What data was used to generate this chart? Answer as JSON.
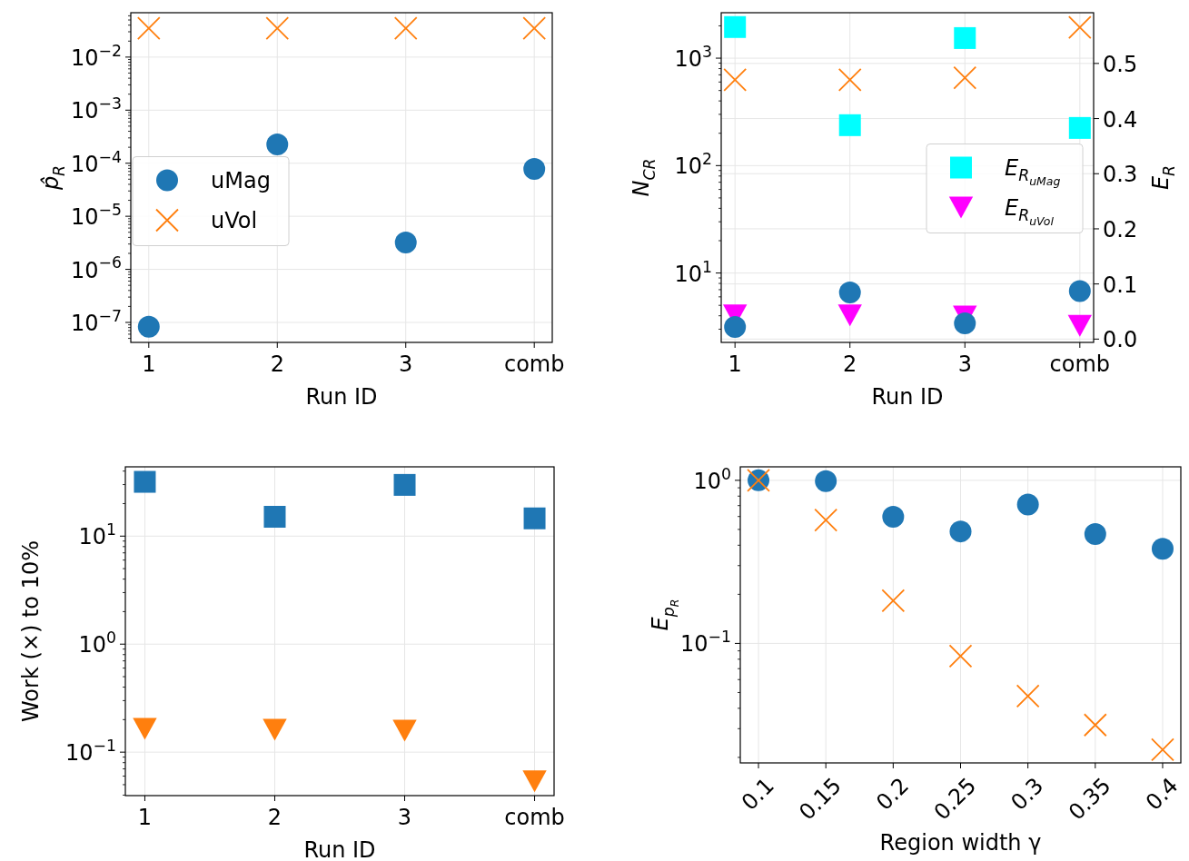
{
  "chart_data": [
    {
      "type": "scatter",
      "categories": [
        "1",
        "2",
        "3",
        "comb"
      ],
      "xlabel": "Run ID",
      "ylabel": "p̂$_{R}$",
      "log": "y",
      "grid": true,
      "legend": "center left",
      "ylim": [
        4.2e-08,
        0.0686
      ],
      "yticks": [
        {
          "value": 1e-07,
          "label": "10$^{−7}$"
        },
        {
          "value": 1e-06,
          "label": "10$^{−6}$"
        },
        {
          "value": 1e-05,
          "label": "10$^{−5}$"
        },
        {
          "value": 0.0001,
          "label": "10$^{−4}$"
        },
        {
          "value": 0.001,
          "label": "10$^{−3}$"
        },
        {
          "value": 0.01,
          "label": "10$^{−2}$"
        }
      ],
      "series": [
        {
          "name": "uMag",
          "color": "#1f77b4",
          "marker": "circle",
          "values": [
            8.3e-08,
            0.000226,
            3.2e-06,
            7.8e-05
          ]
        },
        {
          "name": "uVol",
          "color": "#ff7f0e",
          "marker": "cross",
          "values": [
            0.035,
            0.035,
            0.035,
            0.035
          ]
        }
      ]
    },
    {
      "type": "scatter",
      "categories": [
        "1",
        "2",
        "3",
        "comb"
      ],
      "xlabel": "Run ID",
      "ylabel": "N$_{CR}$",
      "y2label": "E$_{R}$",
      "log": "y",
      "grid": true,
      "legend": "center right",
      "ylim": [
        2.26,
        2650
      ],
      "yticks": [
        {
          "value": 10,
          "label": "10$^{1}$"
        },
        {
          "value": 100,
          "label": "10$^{2}$"
        },
        {
          "value": 1000,
          "label": "10$^{3}$"
        }
      ],
      "y2lim": [
        -0.006,
        0.592
      ],
      "y2ticks": [
        {
          "value": 0,
          "label": "0.0"
        },
        0.1,
        0.2,
        0.3,
        0.4,
        0.5
      ],
      "series": [
        {
          "color": "#1f77b4",
          "marker": "circle",
          "values": [
            3.15,
            6.6,
            3.4,
            6.8
          ]
        },
        {
          "color": "#ff7f0e",
          "marker": "cross",
          "values": [
            630,
            630,
            656,
            1940
          ]
        },
        {
          "name": "E$_{R}$$_{uMag}$",
          "color": "#00ffff",
          "marker": "square",
          "axis": "y2",
          "values": [
            0.566,
            0.388,
            0.546,
            0.383
          ]
        },
        {
          "name": "E$_{R}$$_{uVol}$",
          "color": "#ff00ff",
          "marker": "triangle",
          "axis": "y2",
          "values": [
            0.043,
            0.043,
            0.041,
            0.024
          ]
        }
      ]
    },
    {
      "type": "scatter",
      "categories": [
        "1",
        "2",
        "3",
        "comb"
      ],
      "xlabel": "Run ID",
      "ylabel": "Work (×) to 10%",
      "log": "y",
      "grid": true,
      "ylim": [
        0.0396,
        43.8
      ],
      "yticks": [
        {
          "value": 0.1,
          "label": "10$^{−1}$"
        },
        {
          "value": 1,
          "label": "10$^{0}$"
        },
        {
          "value": 10,
          "label": "10$^{1}$"
        }
      ],
      "series": [
        {
          "color": "#1f77b4",
          "marker": "square",
          "values": [
            31.8,
            15.1,
            29.8,
            14.6
          ]
        },
        {
          "color": "#ff7f0e",
          "marker": "triangle",
          "values": [
            0.164,
            0.161,
            0.158,
            0.0537
          ]
        }
      ]
    },
    {
      "type": "scatter",
      "categories": [
        "0.1",
        "0.15",
        "0.2",
        "0.25",
        "0.3",
        "0.35",
        "0.4"
      ],
      "xlabel": "Region width γ",
      "ylabel": "E$_{p}$$_{R}$",
      "log": "y",
      "grid": true,
      "ylim": [
        0.0185,
        1.21
      ],
      "yticks": [
        {
          "value": 0.1,
          "label": "10$^{−1}$"
        },
        {
          "value": 1,
          "label": "10$^{0}$"
        }
      ],
      "series": [
        {
          "color": "#1f77b4",
          "marker": "circle",
          "values": [
            1.0,
            0.99,
            0.597,
            0.486,
            0.71,
            0.468,
            0.38
          ]
        },
        {
          "color": "#ff7f0e",
          "marker": "cross",
          "values": [
            1.0,
            0.571,
            0.183,
            0.0836,
            0.0475,
            0.0316,
            0.0223
          ]
        }
      ]
    }
  ]
}
